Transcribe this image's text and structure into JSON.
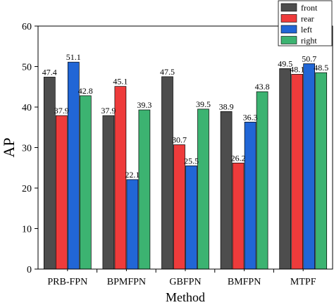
{
  "chart_data": {
    "type": "bar",
    "xlabel": "Method",
    "ylabel": "AP",
    "ylim": [
      0,
      60
    ],
    "yticks": [
      0,
      10,
      20,
      30,
      40,
      50,
      60
    ],
    "grid": false,
    "legend_position": "top-right",
    "categories": [
      "PRB-FPN",
      "BPMFPN",
      "GBFPN",
      "BMFPN",
      "MTPF"
    ],
    "series": [
      {
        "name": "front",
        "color": "#4d4d4d",
        "values": [
          47.4,
          37.9,
          47.5,
          38.9,
          49.5
        ],
        "labels": [
          "47.4",
          "37.9",
          "47.5",
          "38.9",
          "49.5"
        ]
      },
      {
        "name": "rear",
        "color": "#ee3b3b",
        "values": [
          37.9,
          45.1,
          30.7,
          26.2,
          48.1
        ],
        "labels": [
          "37.9",
          "45.1",
          "30.7",
          "26.2",
          "48.1"
        ]
      },
      {
        "name": "left",
        "color": "#2166d6",
        "values": [
          51.1,
          22.1,
          25.5,
          36.3,
          50.7
        ],
        "labels": [
          "51.1",
          "22.1",
          "25.5",
          "36.3",
          "50.7"
        ]
      },
      {
        "name": "right",
        "color": "#3cb371",
        "values": [
          42.8,
          39.3,
          39.5,
          43.8,
          48.5
        ],
        "labels": [
          "42.8",
          "39.3",
          "39.5",
          "43.8",
          "48.5"
        ]
      }
    ]
  }
}
